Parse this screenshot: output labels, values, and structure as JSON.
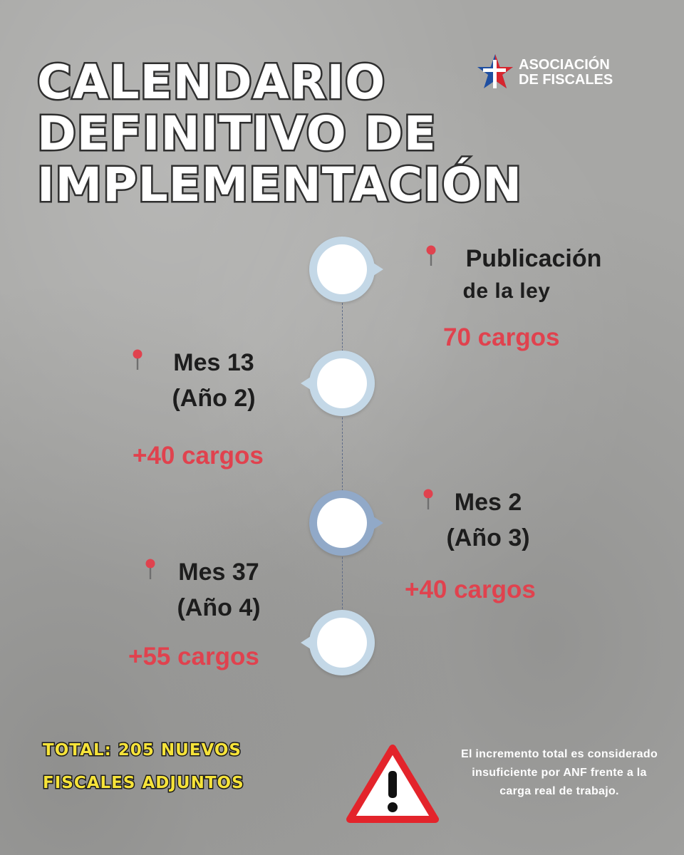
{
  "title": {
    "line1": "CALENDARIO",
    "line2": "DEFINITIVO DE",
    "line3": "IMPLEMENTACIÓN"
  },
  "logo": {
    "line1": "ASOCIACIÓN",
    "line2": "DE FISCALES",
    "colors": {
      "red": "#d7262e",
      "blue": "#1f4fa1",
      "white": "#ffffff"
    }
  },
  "milestones": [
    {
      "line1": "Publicación",
      "line2": "de la ley",
      "count": "70 cargos"
    },
    {
      "line1": "Mes 13",
      "line2": "(Año 2)",
      "count": "+40 cargos"
    },
    {
      "line1": "Mes 2",
      "line2": "(Año 3)",
      "count": "+40 cargos"
    },
    {
      "line1": "Mes 37",
      "line2": "(Año 4)",
      "count": "+55 cargos"
    }
  ],
  "total": {
    "line1": "TOTAL: 205 NUEVOS",
    "line2": "FISCALES ADJUNTOS"
  },
  "note": {
    "line1": "El incremento total es considerado",
    "line2": "insuficiente por ANF frente a la",
    "line3": "carga real de trabajo."
  },
  "icons": [
    "warning-icon",
    "pin-icon",
    "logo-star-icon"
  ],
  "colors": {
    "background": "#a7a7a5",
    "accent_red": "#e0424e",
    "node_light": "#c4d8e7",
    "node_dark": "#91a9c8",
    "total_yellow": "#f6e33a"
  }
}
